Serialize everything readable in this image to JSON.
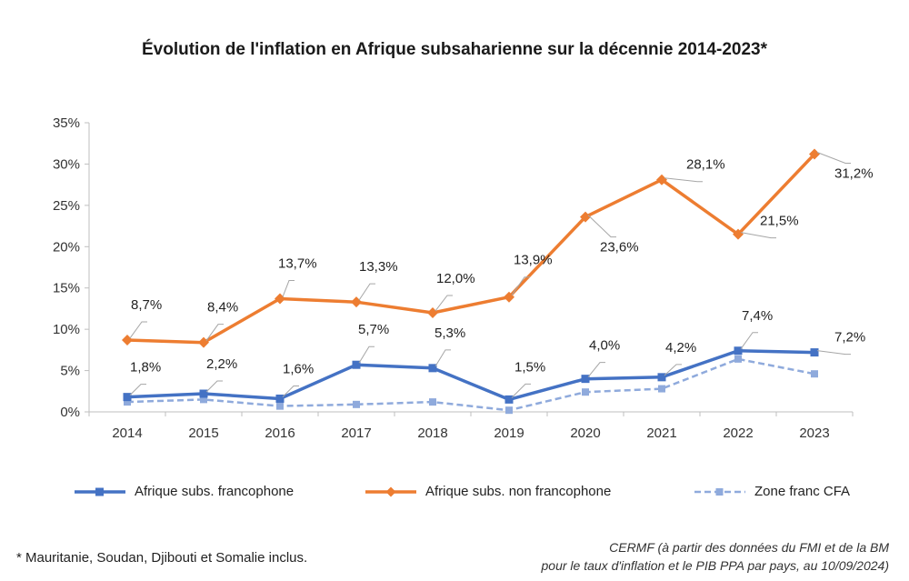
{
  "title": "Évolution de l'inflation en Afrique subsaharienne sur la décennie 2014-2023*",
  "footnote": "* Mauritanie, Soudan, Djibouti et Somalie inclus.",
  "source_line1": "CERMF (à partir des données du FMI et de la BM",
  "source_line2": "pour le taux d'inflation et le PIB PPA par pays, au 10/09/2024)",
  "chart_data": {
    "type": "line",
    "title": "Évolution de l'inflation en Afrique subsaharienne sur la décennie 2014-2023*",
    "categories": [
      "2014",
      "2015",
      "2016",
      "2017",
      "2018",
      "2019",
      "2020",
      "2021",
      "2022",
      "2023"
    ],
    "yticks": [
      "0%",
      "5%",
      "10%",
      "15%",
      "20%",
      "25%",
      "30%",
      "35%"
    ],
    "ylim": [
      0,
      35
    ],
    "grid": false,
    "legend_position": "bottom",
    "series": [
      {
        "name": "Afrique subs. francophone",
        "color": "#4472c4",
        "marker": "square",
        "dash": false,
        "values": [
          1.8,
          2.2,
          1.6,
          5.7,
          5.3,
          1.5,
          4.0,
          4.2,
          7.4,
          7.2
        ],
        "labels": [
          "1,8%",
          "2,2%",
          "1,6%",
          "5,7%",
          "5,3%",
          "1,5%",
          "4,0%",
          "4,2%",
          "7,4%",
          "7,2%"
        ]
      },
      {
        "name": "Afrique subs. non francophone",
        "color": "#ed7d31",
        "marker": "diamond",
        "dash": false,
        "values": [
          8.7,
          8.4,
          13.7,
          13.3,
          12.0,
          13.9,
          23.6,
          28.1,
          21.5,
          31.2
        ],
        "labels": [
          "8,7%",
          "8,4%",
          "13,7%",
          "13,3%",
          "12,0%",
          "13,9%",
          "23,6%",
          "28,1%",
          "21,5%",
          "31,2%"
        ]
      },
      {
        "name": "Zone franc CFA",
        "color": "#8faadc",
        "marker": "square",
        "dash": true,
        "values": [
          1.2,
          1.5,
          0.7,
          0.9,
          1.2,
          0.2,
          2.4,
          2.8,
          6.4,
          4.6
        ],
        "labels": []
      }
    ]
  }
}
